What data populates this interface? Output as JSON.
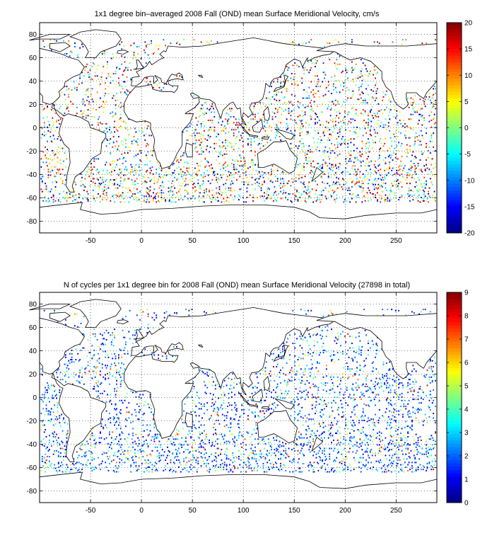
{
  "chart_data": [
    {
      "type": "heatmap",
      "title": "1x1 degree bin–averaged 2008 Fall (OND) mean Surface Meridional Velocity, cm/s",
      "xlabel": "",
      "ylabel": "",
      "xlim": [
        -100,
        290
      ],
      "ylim": [
        -90,
        90
      ],
      "x_ticks": [
        -50,
        0,
        50,
        100,
        150,
        200,
        250
      ],
      "y_ticks": [
        -80,
        -60,
        -40,
        -20,
        0,
        20,
        40,
        60,
        80
      ],
      "grid": true,
      "colorbar": {
        "min": -20,
        "max": 20,
        "ticks": [
          -20,
          -15,
          -10,
          -5,
          0,
          5,
          10,
          15,
          20
        ],
        "colormap": "jet"
      }
    },
    {
      "type": "heatmap",
      "title": "N of cycles per 1x1 degree bin for 2008 Fall (OND) mean Surface Meridional Velocity (27898 in total)",
      "xlabel": "",
      "ylabel": "",
      "xlim": [
        -100,
        290
      ],
      "ylim": [
        -90,
        90
      ],
      "x_ticks": [
        -50,
        0,
        50,
        100,
        150,
        200,
        250
      ],
      "y_ticks": [
        -80,
        -60,
        -40,
        -20,
        0,
        20,
        40,
        60,
        80
      ],
      "grid": true,
      "colorbar": {
        "min": 0,
        "max": 9,
        "ticks": [
          0,
          1,
          2,
          3,
          4,
          5,
          6,
          7,
          8,
          9
        ],
        "colormap": "jet"
      }
    }
  ]
}
